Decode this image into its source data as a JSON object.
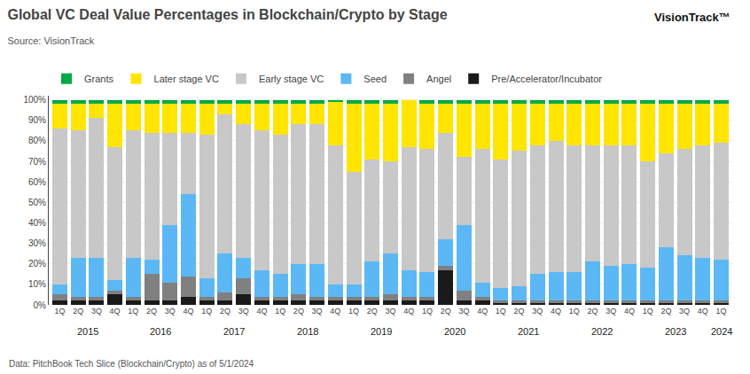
{
  "chart_data": {
    "type": "bar",
    "title": "Global VC Deal Value Percentages in Blockchain/Crypto by Stage",
    "subtitle": "Source: VisionTrack",
    "annotations": [
      "2015",
      "2016",
      "2017",
      "2018",
      "2019",
      "2020",
      "2021",
      "2022",
      "2023",
      "2024",
      "Data: PitchBook Tech Slice (Blockchain/Crypto) as of 5/1/2024",
      "VisionTrack™"
    ],
    "categories": [
      "1Q",
      "2Q",
      "3Q",
      "4Q",
      "1Q",
      "2Q",
      "3Q",
      "4Q",
      "1Q",
      "2Q",
      "3Q",
      "4Q",
      "1Q",
      "2Q",
      "3Q",
      "4Q",
      "1Q",
      "2Q",
      "3Q",
      "4Q",
      "1Q",
      "2Q",
      "3Q",
      "4Q",
      "1Q",
      "2Q",
      "3Q",
      "4Q",
      "1Q",
      "2Q",
      "3Q",
      "4Q",
      "1Q",
      "2Q",
      "3Q",
      "4Q",
      "1Q"
    ],
    "series": [
      {
        "name": "Pre/Accelerator/Incubator",
        "color": "#1a1a1a",
        "values": [
          2,
          2,
          2,
          5,
          2,
          2,
          2,
          4,
          2,
          2,
          5,
          2,
          2,
          2,
          2,
          2,
          2,
          2,
          2,
          2,
          2,
          17,
          2,
          2,
          1,
          1,
          1,
          1,
          1,
          1,
          1,
          1,
          1,
          1,
          1,
          1,
          1
        ]
      },
      {
        "name": "Angel",
        "color": "#808080",
        "values": [
          3,
          2,
          2,
          2,
          2,
          13,
          9,
          10,
          2,
          4,
          8,
          2,
          2,
          3,
          2,
          2,
          2,
          2,
          3,
          2,
          2,
          2,
          5,
          2,
          1,
          1,
          1,
          1,
          1,
          1,
          1,
          1,
          1,
          1,
          1,
          1,
          1
        ]
      },
      {
        "name": "Seed",
        "color": "#5bb8f5",
        "values": [
          5,
          19,
          19,
          5,
          19,
          7,
          28,
          40,
          9,
          19,
          10,
          13,
          11,
          15,
          16,
          6,
          6,
          17,
          20,
          13,
          12,
          13,
          32,
          7,
          6,
          7,
          13,
          14,
          14,
          19,
          17,
          18,
          16,
          26,
          22,
          21,
          20
        ]
      },
      {
        "name": "Early stage VC",
        "color": "#c8c8c8",
        "values": [
          76,
          62,
          68,
          65,
          62,
          62,
          45,
          30,
          70,
          68,
          65,
          68,
          68,
          68,
          68,
          68,
          55,
          50,
          45,
          60,
          60,
          52,
          33,
          65,
          63,
          66,
          63,
          64,
          62,
          57,
          59,
          58,
          52,
          46,
          52,
          55,
          57
        ]
      },
      {
        "name": "Later stage VC",
        "color": "#ffe500",
        "values": [
          12,
          13,
          7,
          21,
          13,
          14,
          14,
          14,
          15,
          5,
          10,
          13,
          15,
          10,
          10,
          21,
          33,
          27,
          28,
          23,
          22,
          14,
          26,
          22,
          27,
          23,
          20,
          18,
          20,
          20,
          20,
          20,
          28,
          24,
          22,
          20,
          19
        ]
      },
      {
        "name": "Grants",
        "color": "#00aa44",
        "values": [
          2,
          2,
          2,
          2,
          2,
          2,
          2,
          2,
          2,
          2,
          2,
          2,
          2,
          2,
          2,
          1,
          2,
          2,
          2,
          0,
          2,
          2,
          2,
          2,
          2,
          2,
          2,
          2,
          2,
          2,
          2,
          2,
          2,
          2,
          2,
          2,
          2
        ]
      }
    ],
    "stacked": true,
    "ylim": [
      0,
      102
    ],
    "yticks": [
      {
        "value": 0,
        "label": "0%"
      },
      {
        "value": 10,
        "label": "10%"
      },
      {
        "value": 20,
        "label": "20%"
      },
      {
        "value": 30,
        "label": "30%"
      },
      {
        "value": 40,
        "label": "40%"
      },
      {
        "value": 50,
        "label": "50%"
      },
      {
        "value": 60,
        "label": "60%"
      },
      {
        "value": 70,
        "label": "70%"
      },
      {
        "value": 80,
        "label": "80%"
      },
      {
        "value": 90,
        "label": "90%"
      },
      {
        "value": 100,
        "label": "100%"
      }
    ],
    "grid": true,
    "legend": "top"
  }
}
